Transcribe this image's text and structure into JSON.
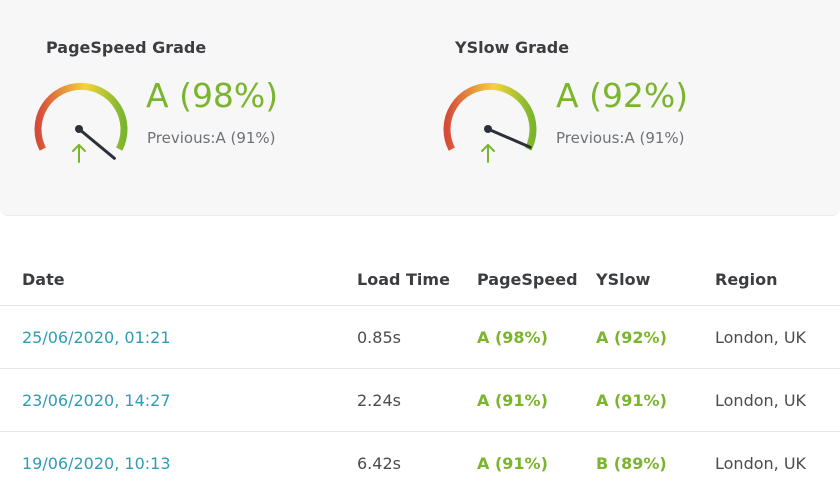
{
  "pagespeed": {
    "title": "PageSpeed Grade",
    "value": "A (98%)",
    "previous": "Previous:A (91%)",
    "score_percent": 98,
    "trend_icon": "arrow-up-icon"
  },
  "yslow": {
    "title": "YSlow Grade",
    "value": "A (92%)",
    "previous": "Previous:A (91%)",
    "score_percent": 92,
    "trend_icon": "arrow-up-icon"
  },
  "colors": {
    "good": "#7ab52d",
    "link": "#2d9db3",
    "gauge_low": "#d64a3a",
    "gauge_mid": "#f2d53c",
    "gauge_high": "#7ab52d",
    "needle": "#2c3038"
  },
  "history": {
    "headers": {
      "date": "Date",
      "load_time": "Load Time",
      "pagespeed": "PageSpeed",
      "yslow": "YSlow",
      "region": "Region"
    },
    "rows": [
      {
        "date": "25/06/2020, 01:21",
        "load_time": "0.85s",
        "pagespeed": "A (98%)",
        "yslow": "A (92%)",
        "region": "London, UK"
      },
      {
        "date": "23/06/2020, 14:27",
        "load_time": "2.24s",
        "pagespeed": "A (91%)",
        "yslow": "A (91%)",
        "region": "London, UK"
      },
      {
        "date": "19/06/2020, 10:13",
        "load_time": "6.42s",
        "pagespeed": "A (91%)",
        "yslow": "B (89%)",
        "region": "London, UK"
      }
    ]
  }
}
